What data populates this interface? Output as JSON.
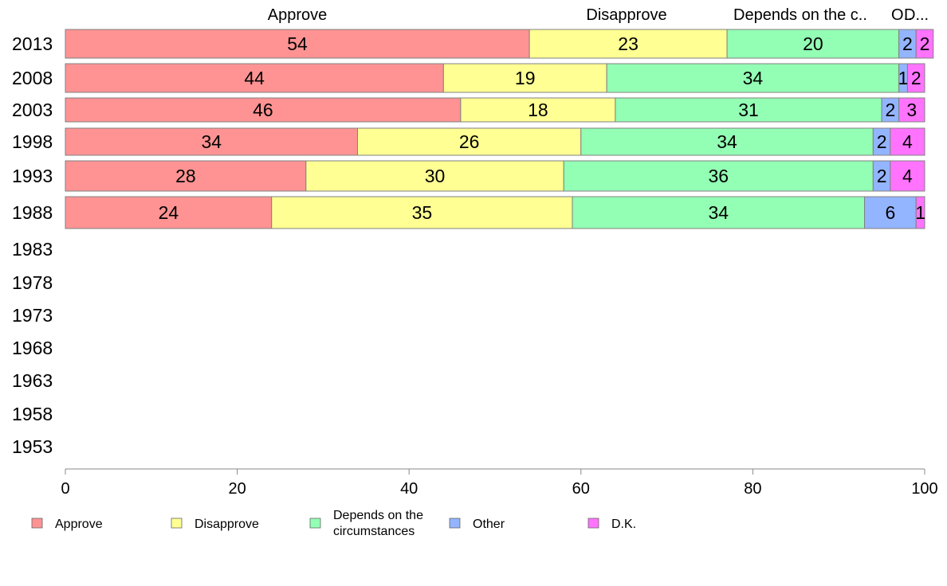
{
  "chart_data": {
    "type": "bar",
    "orientation": "horizontal",
    "stacked": true,
    "categories": [
      "2013",
      "2008",
      "2003",
      "1998",
      "1993",
      "1988",
      "1983",
      "1978",
      "1973",
      "1968",
      "1963",
      "1958",
      "1953"
    ],
    "series": [
      {
        "name": "Approve",
        "color": "#ff9393",
        "values": [
          54,
          44,
          46,
          34,
          28,
          24,
          null,
          null,
          null,
          null,
          null,
          null,
          null
        ]
      },
      {
        "name": "Disapprove",
        "color": "#ffff93",
        "values": [
          23,
          19,
          18,
          26,
          30,
          35,
          null,
          null,
          null,
          null,
          null,
          null,
          null
        ]
      },
      {
        "name": "Depends on the circumstances",
        "color": "#93ffb4",
        "values": [
          20,
          34,
          31,
          34,
          36,
          34,
          null,
          null,
          null,
          null,
          null,
          null,
          null
        ]
      },
      {
        "name": "Other",
        "color": "#93b4ff",
        "values": [
          2,
          1,
          2,
          2,
          2,
          6,
          null,
          null,
          null,
          null,
          null,
          null,
          null
        ]
      },
      {
        "name": "D.K.",
        "color": "#ff73ff",
        "values": [
          2,
          2,
          3,
          4,
          4,
          1,
          null,
          null,
          null,
          null,
          null,
          null,
          null
        ]
      }
    ],
    "top_labels": [
      "Approve",
      "Disapprove",
      "Depends on the c..",
      "O..",
      "D..."
    ],
    "legend_labels": [
      "Approve",
      "Disapprove",
      "Depends on the\ncircumstances",
      "Other",
      "D.K."
    ],
    "x_ticks": [
      "0",
      "20",
      "40",
      "60",
      "80",
      "100"
    ],
    "xlim": [
      0,
      100
    ],
    "grid": false,
    "legend_position": "bottom"
  }
}
